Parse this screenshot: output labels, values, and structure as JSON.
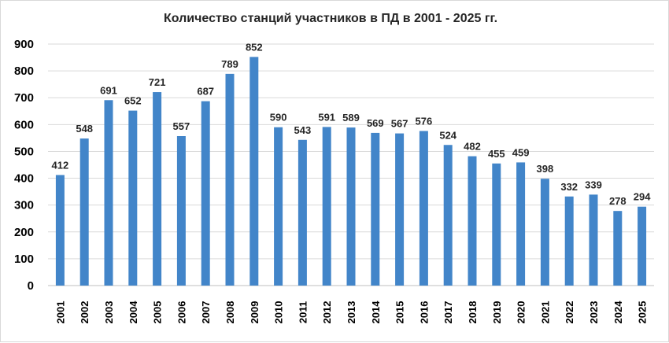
{
  "chart_data": {
    "type": "bar",
    "title": "Количество станций участников в ПД в 2001 - 2025 гг.",
    "categories": [
      "2001",
      "2002",
      "2003",
      "2004",
      "2005",
      "2006",
      "2007",
      "2008",
      "2009",
      "2010",
      "2011",
      "2012",
      "2013",
      "2014",
      "2015",
      "2016",
      "2017",
      "2018",
      "2019",
      "2020",
      "2021",
      "2022",
      "2023",
      "2024",
      "2025"
    ],
    "values": [
      412,
      548,
      691,
      652,
      721,
      557,
      687,
      789,
      852,
      590,
      543,
      591,
      589,
      569,
      567,
      576,
      524,
      482,
      455,
      459,
      398,
      332,
      339,
      278,
      294
    ],
    "ylim": [
      0,
      900
    ],
    "yticks": [
      "0",
      "100",
      "200",
      "300",
      "400",
      "500",
      "600",
      "700",
      "800",
      "900"
    ],
    "xlabel": "",
    "ylabel": "",
    "grid": true,
    "legend": "none",
    "data_labels": true,
    "bar_color": "#4285c9"
  }
}
